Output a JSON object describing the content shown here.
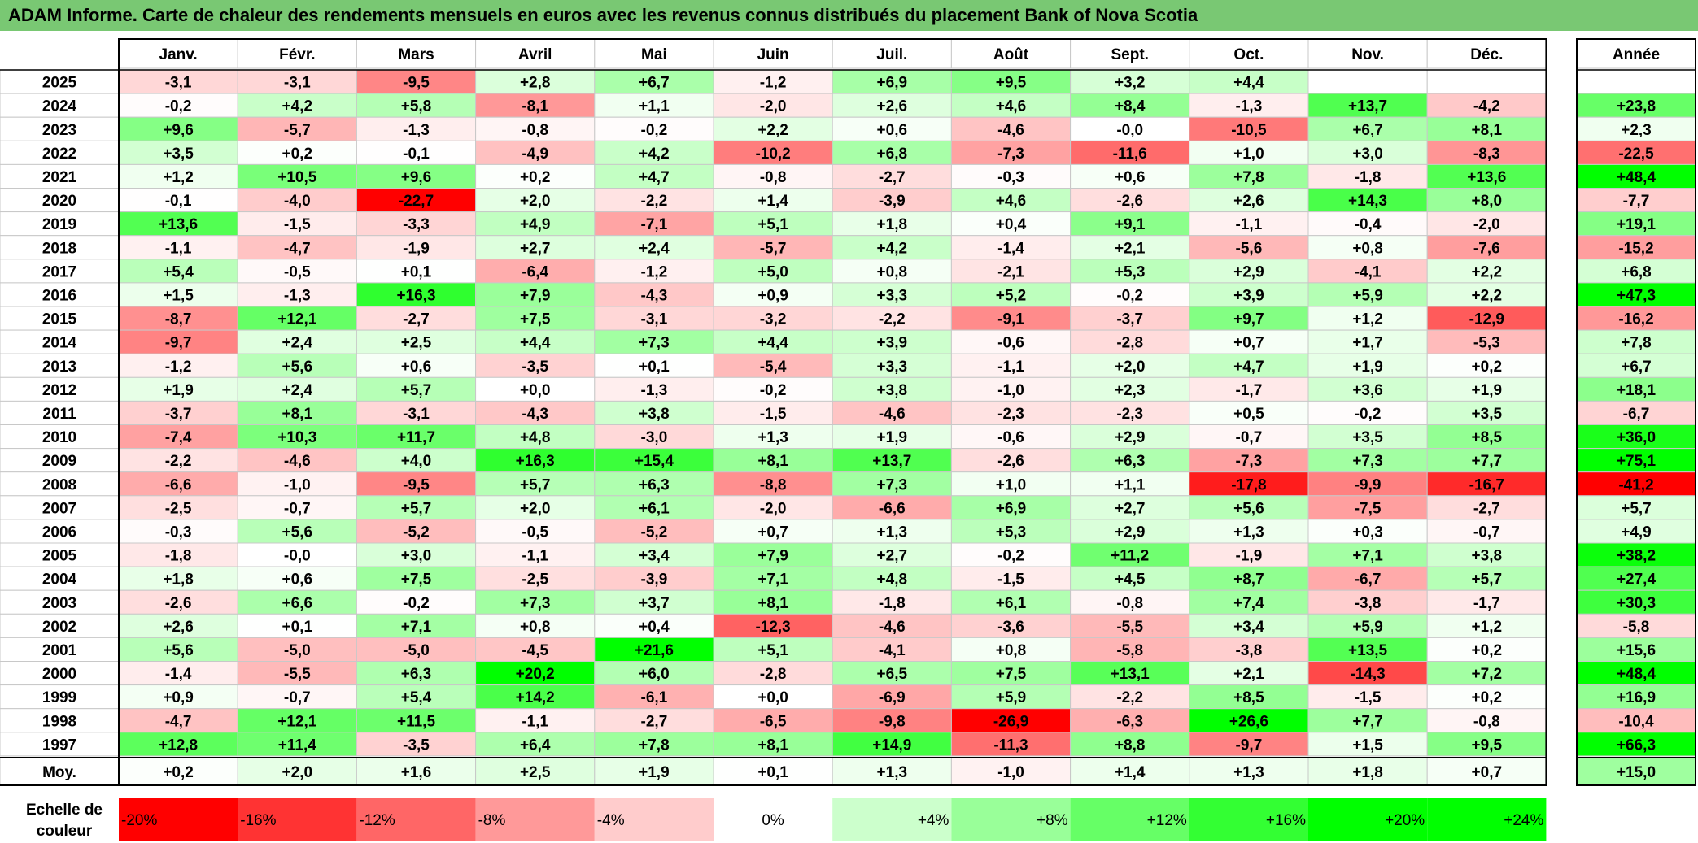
{
  "title": "ADAM Informe. Carte de chaleur des rendements mensuels en euros avec les revenus connus distribués du placement Bank of Nova Scotia",
  "colors": {
    "positive_max": "#00ff00",
    "negative_max": "#ff0000",
    "neutral": "#ffffff",
    "title_bg": "#79c873"
  },
  "chart_data": {
    "type": "heatmap",
    "months": [
      "Janv.",
      "Févr.",
      "Mars",
      "Avril",
      "Mai",
      "Juin",
      "Juil.",
      "Août",
      "Sept.",
      "Oct.",
      "Nov.",
      "Déc."
    ],
    "year_header": "Année",
    "rows": [
      {
        "year": "2025",
        "values": [
          "-3,1",
          "-3,1",
          "-9,5",
          "+2,8",
          "+6,7",
          "-1,2",
          "+6,9",
          "+9,5",
          "+3,2",
          "+4,4",
          "",
          ""
        ],
        "annual": ""
      },
      {
        "year": "2024",
        "values": [
          "-0,2",
          "+4,2",
          "+5,8",
          "-8,1",
          "+1,1",
          "-2,0",
          "+2,6",
          "+4,6",
          "+8,4",
          "-1,3",
          "+13,7",
          "-4,2"
        ],
        "annual": "+23,8"
      },
      {
        "year": "2023",
        "values": [
          "+9,6",
          "-5,7",
          "-1,3",
          "-0,8",
          "-0,2",
          "+2,2",
          "+0,6",
          "-4,6",
          "-0,0",
          "-10,5",
          "+6,7",
          "+8,1"
        ],
        "annual": "+2,3"
      },
      {
        "year": "2022",
        "values": [
          "+3,5",
          "+0,2",
          "-0,1",
          "-4,9",
          "+4,2",
          "-10,2",
          "+6,8",
          "-7,3",
          "-11,6",
          "+1,0",
          "+3,0",
          "-8,3"
        ],
        "annual": "-22,5"
      },
      {
        "year": "2021",
        "values": [
          "+1,2",
          "+10,5",
          "+9,6",
          "+0,2",
          "+4,7",
          "-0,8",
          "-2,7",
          "-0,3",
          "+0,6",
          "+7,8",
          "-1,8",
          "+13,6"
        ],
        "annual": "+48,4"
      },
      {
        "year": "2020",
        "values": [
          "-0,1",
          "-4,0",
          "-22,7",
          "+2,0",
          "-2,2",
          "+1,4",
          "-3,9",
          "+4,6",
          "-2,6",
          "+2,6",
          "+14,3",
          "+8,0"
        ],
        "annual": "-7,7"
      },
      {
        "year": "2019",
        "values": [
          "+13,6",
          "-1,5",
          "-3,3",
          "+4,9",
          "-7,1",
          "+5,1",
          "+1,8",
          "+0,4",
          "+9,1",
          "-1,1",
          "-0,4",
          "-2,0"
        ],
        "annual": "+19,1"
      },
      {
        "year": "2018",
        "values": [
          "-1,1",
          "-4,7",
          "-1,9",
          "+2,7",
          "+2,4",
          "-5,7",
          "+4,2",
          "-1,4",
          "+2,1",
          "-5,6",
          "+0,8",
          "-7,6"
        ],
        "annual": "-15,2"
      },
      {
        "year": "2017",
        "values": [
          "+5,4",
          "-0,5",
          "+0,1",
          "-6,4",
          "-1,2",
          "+5,0",
          "+0,8",
          "-2,1",
          "+5,3",
          "+2,9",
          "-4,1",
          "+2,2"
        ],
        "annual": "+6,8"
      },
      {
        "year": "2016",
        "values": [
          "+1,5",
          "-1,3",
          "+16,3",
          "+7,9",
          "-4,3",
          "+0,9",
          "+3,3",
          "+5,2",
          "-0,2",
          "+3,9",
          "+5,9",
          "+2,2"
        ],
        "annual": "+47,3"
      },
      {
        "year": "2015",
        "values": [
          "-8,7",
          "+12,1",
          "-2,7",
          "+7,5",
          "-3,1",
          "-3,2",
          "-2,2",
          "-9,1",
          "-3,7",
          "+9,7",
          "+1,2",
          "-12,9"
        ],
        "annual": "-16,2"
      },
      {
        "year": "2014",
        "values": [
          "-9,7",
          "+2,4",
          "+2,5",
          "+4,4",
          "+7,3",
          "+4,4",
          "+3,9",
          "-0,6",
          "-2,8",
          "+0,7",
          "+1,7",
          "-5,3"
        ],
        "annual": "+7,8"
      },
      {
        "year": "2013",
        "values": [
          "-1,2",
          "+5,6",
          "+0,6",
          "-3,5",
          "+0,1",
          "-5,4",
          "+3,3",
          "-1,1",
          "+2,0",
          "+4,7",
          "+1,9",
          "+0,2"
        ],
        "annual": "+6,7"
      },
      {
        "year": "2012",
        "values": [
          "+1,9",
          "+2,4",
          "+5,7",
          "+0,0",
          "-1,3",
          "-0,2",
          "+3,8",
          "-1,0",
          "+2,3",
          "-1,7",
          "+3,6",
          "+1,9"
        ],
        "annual": "+18,1"
      },
      {
        "year": "2011",
        "values": [
          "-3,7",
          "+8,1",
          "-3,1",
          "-4,3",
          "+3,8",
          "-1,5",
          "-4,6",
          "-2,3",
          "-2,3",
          "+0,5",
          "-0,2",
          "+3,5"
        ],
        "annual": "-6,7"
      },
      {
        "year": "2010",
        "values": [
          "-7,4",
          "+10,3",
          "+11,7",
          "+4,8",
          "-3,0",
          "+1,3",
          "+1,9",
          "-0,6",
          "+2,9",
          "-0,7",
          "+3,5",
          "+8,5"
        ],
        "annual": "+36,0"
      },
      {
        "year": "2009",
        "values": [
          "-2,2",
          "-4,6",
          "+4,0",
          "+16,3",
          "+15,4",
          "+8,1",
          "+13,7",
          "-2,6",
          "+6,3",
          "-7,3",
          "+7,3",
          "+7,7"
        ],
        "annual": "+75,1"
      },
      {
        "year": "2008",
        "values": [
          "-6,6",
          "-1,0",
          "-9,5",
          "+5,7",
          "+6,3",
          "-8,8",
          "+7,3",
          "+1,0",
          "+1,1",
          "-17,8",
          "-9,9",
          "-16,7"
        ],
        "annual": "-41,2"
      },
      {
        "year": "2007",
        "values": [
          "-2,5",
          "-0,7",
          "+5,7",
          "+2,0",
          "+6,1",
          "-2,0",
          "-6,6",
          "+6,9",
          "+2,7",
          "+5,6",
          "-7,5",
          "-2,7"
        ],
        "annual": "+5,7"
      },
      {
        "year": "2006",
        "values": [
          "-0,3",
          "+5,6",
          "-5,2",
          "-0,5",
          "-5,2",
          "+0,7",
          "+1,3",
          "+5,3",
          "+2,9",
          "+1,3",
          "+0,3",
          "-0,7"
        ],
        "annual": "+4,9"
      },
      {
        "year": "2005",
        "values": [
          "-1,8",
          "-0,0",
          "+3,0",
          "-1,1",
          "+3,4",
          "+7,9",
          "+2,7",
          "-0,2",
          "+11,2",
          "-1,9",
          "+7,1",
          "+3,8"
        ],
        "annual": "+38,2"
      },
      {
        "year": "2004",
        "values": [
          "+1,8",
          "+0,6",
          "+7,5",
          "-2,5",
          "-3,9",
          "+7,1",
          "+4,8",
          "-1,5",
          "+4,5",
          "+8,7",
          "-6,7",
          "+5,7"
        ],
        "annual": "+27,4"
      },
      {
        "year": "2003",
        "values": [
          "-2,6",
          "+6,6",
          "-0,2",
          "+7,3",
          "+3,7",
          "+8,1",
          "-1,8",
          "+6,1",
          "-0,8",
          "+7,4",
          "-3,8",
          "-1,7"
        ],
        "annual": "+30,3"
      },
      {
        "year": "2002",
        "values": [
          "+2,6",
          "+0,1",
          "+7,1",
          "+0,8",
          "+0,4",
          "-12,3",
          "-4,6",
          "-3,6",
          "-5,5",
          "+3,4",
          "+5,9",
          "+1,2"
        ],
        "annual": "-5,8"
      },
      {
        "year": "2001",
        "values": [
          "+5,6",
          "-5,0",
          "-5,0",
          "-4,5",
          "+21,6",
          "+5,1",
          "-4,1",
          "+0,8",
          "-5,8",
          "-3,8",
          "+13,5",
          "+0,2"
        ],
        "annual": "+15,6"
      },
      {
        "year": "2000",
        "values": [
          "-1,4",
          "-5,5",
          "+6,3",
          "+20,2",
          "+6,0",
          "-2,8",
          "+6,5",
          "+7,5",
          "+13,1",
          "+2,1",
          "-14,3",
          "+7,2"
        ],
        "annual": "+48,4"
      },
      {
        "year": "1999",
        "values": [
          "+0,9",
          "-0,7",
          "+5,4",
          "+14,2",
          "-6,1",
          "+0,0",
          "-6,9",
          "+5,9",
          "-2,2",
          "+8,5",
          "-1,5",
          "+0,2"
        ],
        "annual": "+16,9"
      },
      {
        "year": "1998",
        "values": [
          "-4,7",
          "+12,1",
          "+11,5",
          "-1,1",
          "-2,7",
          "-6,5",
          "-9,8",
          "-26,9",
          "-6,3",
          "+26,6",
          "+7,7",
          "-0,8"
        ],
        "annual": "-10,4"
      },
      {
        "year": "1997",
        "values": [
          "+12,8",
          "+11,4",
          "-3,5",
          "+6,4",
          "+7,8",
          "+8,1",
          "+14,9",
          "-11,3",
          "+8,8",
          "-9,7",
          "+1,5",
          "+9,5"
        ],
        "annual": "+66,3"
      }
    ],
    "average": {
      "label": "Moy.",
      "values": [
        "+0,2",
        "+2,0",
        "+1,6",
        "+2,5",
        "+1,9",
        "+0,1",
        "+1,3",
        "-1,0",
        "+1,4",
        "+1,3",
        "+1,8",
        "+0,7"
      ],
      "annual": "+15,0"
    },
    "scale": {
      "label_line1": "Echelle de",
      "label_line2": "couleur",
      "steps": [
        {
          "label": "-20%",
          "value": -20
        },
        {
          "label": "-16%",
          "value": -16
        },
        {
          "label": "-12%",
          "value": -12
        },
        {
          "label": "-8%",
          "value": -8
        },
        {
          "label": "-4%",
          "value": -4
        },
        {
          "label": "0%",
          "value": 0
        },
        {
          "label": "+4%",
          "value": 4
        },
        {
          "label": "+8%",
          "value": 8
        },
        {
          "label": "+12%",
          "value": 12
        },
        {
          "label": "+16%",
          "value": 16
        },
        {
          "label": "+20%",
          "value": 20
        },
        {
          "label": "+24%",
          "value": 24
        }
      ]
    }
  }
}
